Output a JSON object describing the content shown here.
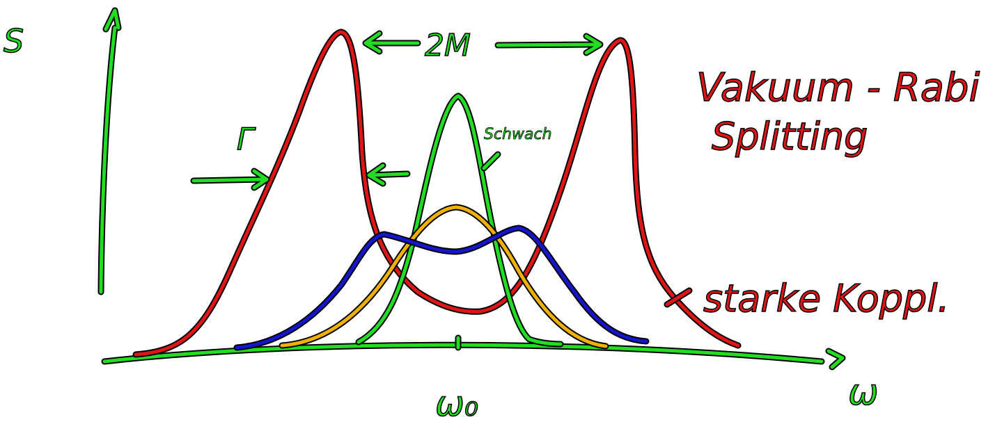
{
  "labels": {
    "y_axis": "S",
    "x_axis": "ω",
    "center": "ω₀",
    "splitting": "2M",
    "width": "Γ",
    "weak": "Schwach",
    "title_line1": "Vakuum - Rabi",
    "title_line2": "Splitting",
    "strong": "starke Koppl."
  },
  "colors": {
    "axes": "#22dd22",
    "green_curve": "#22dd22",
    "red_curve": "#e01515",
    "blue_curve": "#1515cc",
    "orange_curve": "#f0b000",
    "outline": "#000000"
  }
}
